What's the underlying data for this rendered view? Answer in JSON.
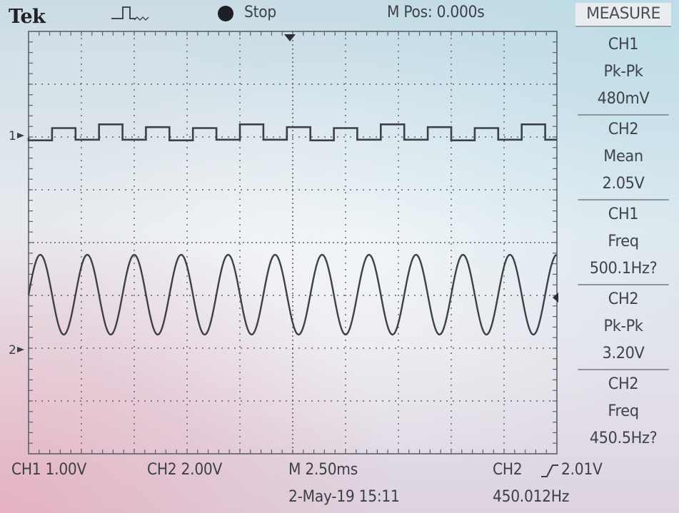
{
  "header": {
    "brand": "Tek",
    "acquisition_status": "Stop",
    "horizontal_position": "M Pos: 0.000s"
  },
  "icons": {
    "trigger_status": "trigger-pulse-icon",
    "run_state": "stop-dot-icon",
    "trigger_position": "trigger-position-marker-icon"
  },
  "measure_menu": {
    "title": "MEASURE",
    "items": [
      {
        "channel": "CH1",
        "type": "Pk-Pk",
        "value": "480mV"
      },
      {
        "channel": "CH2",
        "type": "Mean",
        "value": "2.05V"
      },
      {
        "channel": "CH1",
        "type": "Freq",
        "value": "500.1Hz?"
      },
      {
        "channel": "CH2",
        "type": "Pk-Pk",
        "value": "3.20V"
      },
      {
        "channel": "CH2",
        "type": "Freq",
        "value": "450.5Hz?"
      }
    ]
  },
  "channels": {
    "ch1_marker": "1",
    "ch2_marker": "2",
    "ch1_scale": "CH1  1.00V",
    "ch2_scale": "CH2  2.00V"
  },
  "status_bar": {
    "timebase": "M 2.50ms",
    "trigger_source": "CH2",
    "trigger_level": "2.01V",
    "date_time": "2-May-19 15:11",
    "trigger_frequency": "450.012Hz"
  },
  "waveforms": {
    "ch1": {
      "shape": "square pulse train",
      "pulses": [
        [
          1,
          0.65
        ],
        [
          0,
          0.25
        ],
        [
          1,
          0.5
        ],
        [
          0,
          0.45
        ],
        [
          1,
          0.5
        ],
        [
          0,
          0.3
        ]
      ]
    },
    "ch2": {
      "shape": "sine",
      "periods_on_screen": 11.25
    }
  },
  "colors": {
    "trace": "#3d4046",
    "grid": "#5c6068",
    "text": "#3c3f46"
  }
}
